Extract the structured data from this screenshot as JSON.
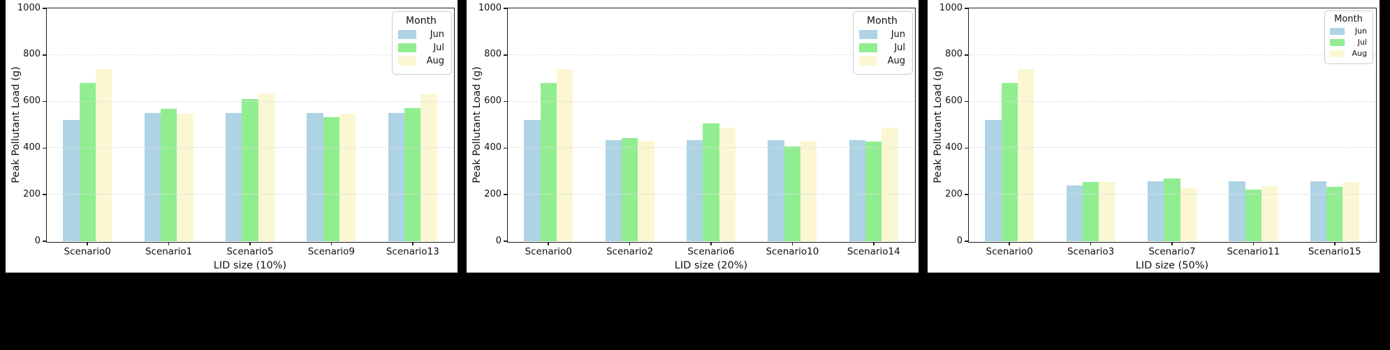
{
  "figure": {
    "background": "#000000",
    "panel_background": "#ffffff"
  },
  "legend": {
    "title": "Month",
    "entries": [
      "Jun",
      "Jul",
      "Aug"
    ]
  },
  "series_colors": {
    "Jun": "#AED3E4",
    "Jul": "#90EE90",
    "Aug": "#FBF7D2"
  },
  "chart_data": [
    {
      "type": "bar",
      "title": "",
      "xlabel": "LID size (10%)",
      "ylabel": "Peak Pollutant Load (g)",
      "ylim": [
        0,
        1000
      ],
      "yticks": [
        0,
        200,
        400,
        600,
        800,
        1000
      ],
      "grid": "horizontal-dashed",
      "legend_title": "Month",
      "legend_position": "upper right",
      "categories": [
        "Scenario0",
        "Scenario1",
        "Scenario5",
        "Scenario9",
        "Scenario13"
      ],
      "series": [
        {
          "name": "Jun",
          "color": "#AED3E4",
          "values": [
            520,
            552,
            552,
            552,
            552
          ]
        },
        {
          "name": "Jul",
          "color": "#90EE90",
          "values": [
            680,
            568,
            610,
            533,
            573
          ]
        },
        {
          "name": "Aug",
          "color": "#FBF7D2",
          "values": [
            740,
            548,
            635,
            548,
            633
          ]
        }
      ]
    },
    {
      "type": "bar",
      "title": "",
      "xlabel": "LID size (20%)",
      "ylabel": "Peak Pollutant Load (g)",
      "ylim": [
        0,
        1000
      ],
      "yticks": [
        0,
        200,
        400,
        600,
        800,
        1000
      ],
      "grid": "horizontal-dashed",
      "legend_title": "Month",
      "legend_position": "upper right",
      "categories": [
        "Scenario0",
        "Scenario2",
        "Scenario6",
        "Scenario10",
        "Scenario14"
      ],
      "series": [
        {
          "name": "Jun",
          "color": "#AED3E4",
          "values": [
            520,
            433,
            433,
            433,
            433
          ]
        },
        {
          "name": "Jul",
          "color": "#90EE90",
          "values": [
            680,
            443,
            505,
            407,
            427
          ]
        },
        {
          "name": "Aug",
          "color": "#FBF7D2",
          "values": [
            740,
            430,
            488,
            430,
            488
          ]
        }
      ]
    },
    {
      "type": "bar",
      "title": "",
      "xlabel": "LID size (50%)",
      "ylabel": "Peak Pollutant Load (g)",
      "ylim": [
        0,
        1000
      ],
      "yticks": [
        0,
        200,
        400,
        600,
        800,
        1000
      ],
      "grid": "horizontal-dashed",
      "legend_title": "Month",
      "legend_position": "upper right",
      "categories": [
        "Scenario0",
        "Scenario3",
        "Scenario7",
        "Scenario11",
        "Scenario15"
      ],
      "series": [
        {
          "name": "Jun",
          "color": "#AED3E4",
          "values": [
            520,
            240,
            258,
            258,
            258
          ]
        },
        {
          "name": "Jul",
          "color": "#90EE90",
          "values": [
            680,
            253,
            268,
            222,
            233
          ]
        },
        {
          "name": "Aug",
          "color": "#FBF7D2",
          "values": [
            740,
            255,
            228,
            236,
            253
          ]
        }
      ]
    }
  ]
}
